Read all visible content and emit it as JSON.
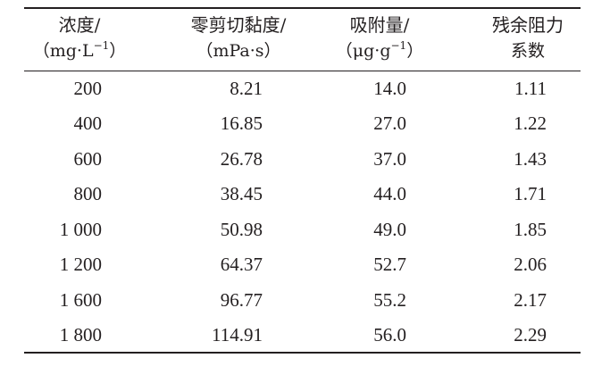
{
  "table": {
    "headers": [
      {
        "line1": "浓度/",
        "line2_main": "（mg·L",
        "line2_sup": "−1",
        "line2_end": "）"
      },
      {
        "line1": "零剪切黏度/",
        "line2_main": "（mPa·s）",
        "line2_sup": "",
        "line2_end": ""
      },
      {
        "line1": "吸附量/",
        "line2_main": "（μg·g",
        "line2_sup": "−1",
        "line2_end": "）"
      },
      {
        "line1": "残余阻力",
        "line2_main": "系数",
        "line2_sup": "",
        "line2_end": ""
      }
    ],
    "rows": [
      [
        "200",
        "8.21",
        "14.0",
        "1.11"
      ],
      [
        "400",
        "16.85",
        "27.0",
        "1.22"
      ],
      [
        "600",
        "26.78",
        "37.0",
        "1.43"
      ],
      [
        "800",
        "38.45",
        "44.0",
        "1.71"
      ],
      [
        "1 000",
        "50.98",
        "49.0",
        "1.85"
      ],
      [
        "1 200",
        "64.37",
        "52.7",
        "2.06"
      ],
      [
        "1 600",
        "96.77",
        "55.2",
        "2.17"
      ],
      [
        "1 800",
        "114.91",
        "56.0",
        "2.29"
      ]
    ]
  }
}
